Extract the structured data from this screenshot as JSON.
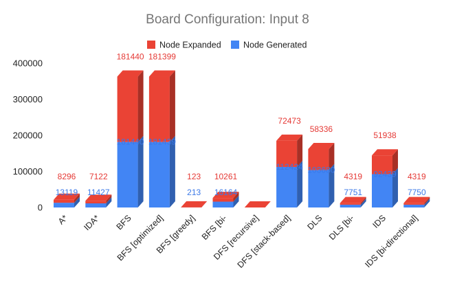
{
  "chart_data": {
    "type": "bar",
    "stacked": true,
    "title": "Board Configuration: Input 8",
    "categories": [
      "A*",
      "IDA*",
      "BFS",
      "BFS [optimized]",
      "BFS [greedy]",
      "BFS [bi-",
      "DFS [recursive]",
      "DFS [stack-based]",
      "DLS",
      "DLS [bi-",
      "IDS",
      "IDS [bi-directional]"
    ],
    "series": [
      {
        "name": "Node Generated",
        "color": "#4285f4",
        "values": [
          13119,
          11427,
          181440,
          181439,
          213,
          16164,
          0,
          112424,
          103680,
          7751,
          92439,
          7750
        ]
      },
      {
        "name": "Node Expanded",
        "color": "#ea4335",
        "values": [
          8296,
          7122,
          181440,
          181399,
          123,
          10261,
          0,
          72473,
          58336,
          4319,
          51938,
          4319
        ]
      }
    ],
    "data_labels_expanded": [
      "8296",
      "7122",
      "181440",
      "181399",
      "123",
      "10261",
      "",
      "72473",
      "58336",
      "4319",
      "51938",
      "4319"
    ],
    "data_labels_generated": [
      "13119",
      "11427",
      "181440",
      "181439",
      "213",
      "16164",
      "",
      "112424",
      "103680",
      "7751",
      "92439",
      "7750"
    ],
    "yticks": [
      "0",
      "100000",
      "200000",
      "300000",
      "400000"
    ],
    "ylim": [
      0,
      400000
    ],
    "legend_position": "top",
    "grid": false,
    "style": "3d"
  }
}
